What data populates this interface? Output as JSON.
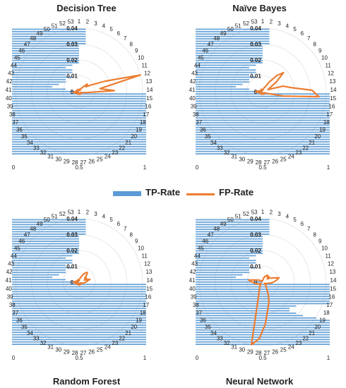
{
  "chart_data": [
    {
      "type": "radar",
      "title": "Decision Tree",
      "categories": [
        "1",
        "2",
        "3",
        "4",
        "5",
        "6",
        "7",
        "8",
        "9",
        "10",
        "11",
        "12",
        "13",
        "14",
        "15",
        "16",
        "17",
        "18",
        "19",
        "20",
        "21",
        "22",
        "23",
        "24",
        "25",
        "26",
        "27",
        "28",
        "29",
        "30",
        "31",
        "32",
        "33",
        "34",
        "35",
        "36",
        "37",
        "38",
        "39",
        "40",
        "41",
        "42",
        "43",
        "44",
        "45",
        "46",
        "47",
        "48",
        "49",
        "50",
        "51",
        "52",
        "53"
      ],
      "ticks": [
        "0",
        "0.01",
        "0.02",
        "0.03",
        "0.04"
      ],
      "fp_rate": [
        0.001,
        0.0015,
        0.002,
        0.0015,
        0.001,
        0.003,
        0.005,
        0.008,
        0.006,
        0.01,
        0.02,
        0.045,
        0.015,
        0.025,
        0.006,
        0.003,
        0.002,
        0.001,
        0.0015,
        0.002,
        0.001,
        0.001,
        0.0015,
        0.001,
        0.002,
        0.001,
        0.001,
        0.001,
        0.0015,
        0.001,
        0.002,
        0.001,
        0.001,
        0.0015,
        0.001,
        0.001,
        0.002,
        0.003,
        0.002,
        0.004,
        0.003,
        0.002,
        0.001,
        0.002,
        0.001,
        0.001,
        0.0015,
        0.001,
        0.002,
        0.001,
        0.001,
        0.001,
        0.001
      ],
      "tp_rate": [
        1,
        1,
        1,
        1,
        1,
        1,
        1,
        1,
        1,
        1,
        1,
        1,
        1,
        1,
        1,
        1,
        1,
        1,
        1,
        1,
        1,
        1,
        1,
        1,
        1,
        1,
        0.5,
        0.4,
        0.3,
        0.35,
        0.4,
        0.4,
        0.45,
        0.4,
        0.45,
        0.45,
        0.4,
        0.45,
        0.5,
        0.5,
        0.5,
        0.5,
        0.5,
        0.5,
        0.5,
        0.5,
        0.55,
        0.55,
        0.55,
        0.55,
        0.55,
        0.55,
        0.55
      ],
      "tp_axis": [
        "0",
        "0.5",
        "1"
      ]
    },
    {
      "type": "radar",
      "title": "Naïve Bayes",
      "categories": [
        "1",
        "2",
        "3",
        "4",
        "5",
        "6",
        "7",
        "8",
        "9",
        "10",
        "11",
        "12",
        "13",
        "14",
        "15",
        "16",
        "17",
        "18",
        "19",
        "20",
        "21",
        "22",
        "23",
        "24",
        "25",
        "26",
        "27",
        "28",
        "29",
        "30",
        "31",
        "32",
        "33",
        "34",
        "35",
        "36",
        "37",
        "38",
        "39",
        "40",
        "41",
        "42",
        "43",
        "44",
        "45",
        "46",
        "47",
        "48",
        "49",
        "50",
        "51",
        "52",
        "53"
      ],
      "ticks": [
        "0",
        "0.01",
        "0.02",
        "0.03",
        "0.04"
      ],
      "fp_rate": [
        0.001,
        0.0015,
        0.002,
        0.003,
        0.004,
        0.008,
        0.015,
        0.02,
        0.012,
        0.006,
        0.004,
        0.015,
        0.02,
        0.035,
        0.04,
        0.015,
        0.004,
        0.002,
        0.0015,
        0.001,
        0.001,
        0.0015,
        0.001,
        0.002,
        0.001,
        0.001,
        0.001,
        0.0015,
        0.001,
        0.002,
        0.001,
        0.001,
        0.0015,
        0.001,
        0.002,
        0.001,
        0.001,
        0.002,
        0.003,
        0.004,
        0.005,
        0.003,
        0.002,
        0.001,
        0.002,
        0.001,
        0.001,
        0.0015,
        0.001,
        0.002,
        0.001,
        0.001,
        0.001
      ],
      "tp_rate": [
        1,
        1,
        1,
        1,
        1,
        1,
        1,
        1,
        1,
        1,
        1,
        1,
        1,
        1,
        1,
        1,
        1,
        1,
        1,
        1,
        1,
        1,
        1,
        1,
        1,
        1,
        0.5,
        0.4,
        0.3,
        0.35,
        0.4,
        0.4,
        0.45,
        0.4,
        0.45,
        0.45,
        0.4,
        0.45,
        0.5,
        0.5,
        0.5,
        0.5,
        0.5,
        0.5,
        0.5,
        0.5,
        0.55,
        0.55,
        0.55,
        0.55,
        0.55,
        0.55,
        0.55
      ],
      "tp_axis": [
        "0",
        "0.5",
        "1"
      ]
    },
    {
      "type": "radar",
      "title": "Random Forest",
      "categories": [
        "1",
        "2",
        "3",
        "4",
        "5",
        "6",
        "7",
        "8",
        "9",
        "10",
        "11",
        "12",
        "13",
        "14",
        "15",
        "16",
        "17",
        "18",
        "19",
        "20",
        "21",
        "22",
        "23",
        "24",
        "25",
        "26",
        "27",
        "28",
        "29",
        "30",
        "31",
        "32",
        "33",
        "34",
        "35",
        "36",
        "37",
        "38",
        "39",
        "40",
        "41",
        "42",
        "43",
        "44",
        "45",
        "46",
        "47",
        "48",
        "49",
        "50",
        "51",
        "52",
        "53"
      ],
      "ticks": [
        "0",
        "0.01",
        "0.02",
        "0.03",
        "0.04"
      ],
      "fp_rate": [
        0.001,
        0.002,
        0.003,
        0.004,
        0.006,
        0.008,
        0.009,
        0.007,
        0.005,
        0.006,
        0.004,
        0.008,
        0.006,
        0.005,
        0.004,
        0.003,
        0.002,
        0.001,
        0.0015,
        0.001,
        0.001,
        0.0015,
        0.002,
        0.001,
        0.002,
        0.001,
        0.001,
        0.002,
        0.001,
        0.0015,
        0.001,
        0.002,
        0.001,
        0.001,
        0.0015,
        0.001,
        0.002,
        0.003,
        0.002,
        0.003,
        0.004,
        0.003,
        0.002,
        0.001,
        0.002,
        0.001,
        0.001,
        0.0015,
        0.001,
        0.002,
        0.001,
        0.001,
        0.001
      ],
      "tp_rate": [
        1,
        1,
        1,
        1,
        1,
        1,
        1,
        1,
        1,
        1,
        1,
        1,
        1,
        1,
        1,
        1,
        1,
        1,
        1,
        1,
        1,
        1,
        1,
        1,
        1,
        1,
        0.5,
        0.4,
        0.3,
        0.35,
        0.4,
        0.4,
        0.45,
        0.4,
        0.45,
        0.45,
        0.4,
        0.45,
        0.5,
        0.5,
        0.5,
        0.5,
        0.5,
        0.5,
        0.5,
        0.5,
        0.55,
        0.55,
        0.55,
        0.55,
        0.55,
        0.55,
        0.55
      ],
      "tp_axis": [
        "0",
        "0.5",
        "1"
      ]
    },
    {
      "type": "radar",
      "title": "Neural Network",
      "categories": [
        "1",
        "2",
        "3",
        "4",
        "5",
        "6",
        "7",
        "8",
        "9",
        "10",
        "11",
        "12",
        "13",
        "14",
        "15",
        "16",
        "17",
        "18",
        "19",
        "20",
        "21",
        "22",
        "23",
        "24",
        "25",
        "26",
        "27",
        "28",
        "29",
        "30",
        "31",
        "32",
        "33",
        "34",
        "35",
        "36",
        "37",
        "38",
        "39",
        "40",
        "41",
        "42",
        "43",
        "44",
        "45",
        "46",
        "47",
        "48",
        "49",
        "50",
        "51",
        "52",
        "53"
      ],
      "ticks": [
        "0",
        "0.01",
        "0.02",
        "0.03",
        "0.04"
      ],
      "fp_rate": [
        0.001,
        0.002,
        0.003,
        0.004,
        0.005,
        0.006,
        0.005,
        0.006,
        0.004,
        0.006,
        0.008,
        0.012,
        0.01,
        0.008,
        0.006,
        0.004,
        0.003,
        0.002,
        0.0015,
        0.002,
        0.003,
        0.004,
        0.006,
        0.01,
        0.015,
        0.02,
        0.03,
        0.04,
        0.045,
        0.01,
        0.006,
        0.004,
        0.003,
        0.002,
        0.0015,
        0.002,
        0.003,
        0.004,
        0.005,
        0.006,
        0.008,
        0.01,
        0.006,
        0.004,
        0.003,
        0.002,
        0.0015,
        0.001,
        0.001,
        0.001,
        0.001,
        0.001,
        0.001
      ],
      "tp_rate": [
        1,
        1,
        1,
        1,
        1,
        1,
        1,
        1,
        1,
        1,
        1,
        0.9,
        0.8,
        0.75,
        0.7,
        0.7,
        0.75,
        1,
        1,
        1,
        1,
        1,
        1,
        1,
        1,
        1,
        0.5,
        0.4,
        0.3,
        0.35,
        0.4,
        0.4,
        0.45,
        0.4,
        0.45,
        0.45,
        0.4,
        0.45,
        0.5,
        0.5,
        0.5,
        0.5,
        0.5,
        0.5,
        0.5,
        0.5,
        0.55,
        0.55,
        0.55,
        0.55,
        0.55,
        0.55,
        0.55
      ],
      "tp_axis": [
        "0",
        "0.5",
        "1"
      ]
    }
  ],
  "legend": {
    "tp_label": "TP-Rate",
    "fp_label": "FP-Rate",
    "tp_color": "#5b9bd5",
    "fp_color": "#ed7d31"
  }
}
